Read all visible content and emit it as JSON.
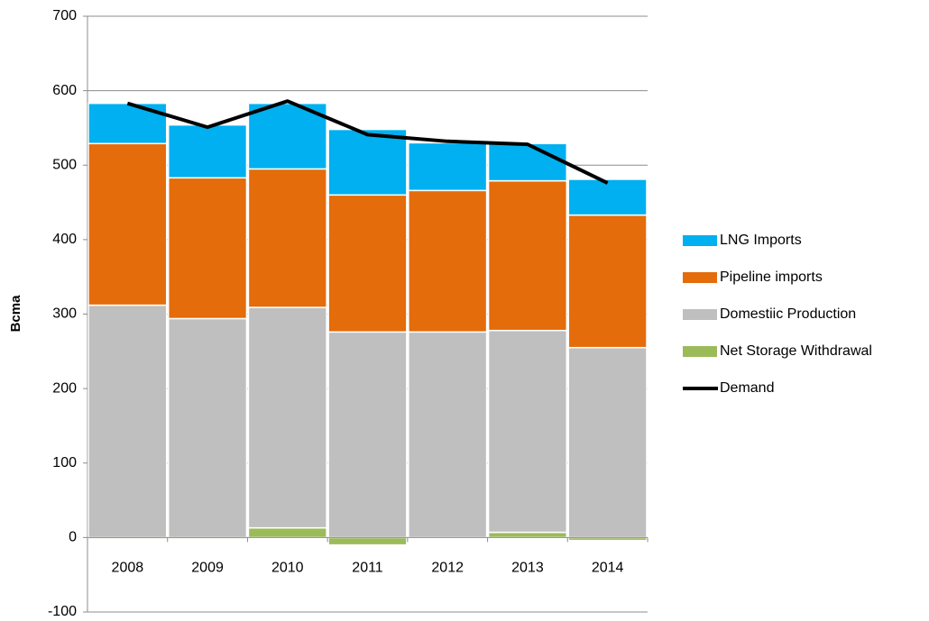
{
  "chart_data": {
    "type": "bar",
    "stacked": true,
    "categories": [
      "2008",
      "2009",
      "2010",
      "2011",
      "2012",
      "2013",
      "2014"
    ],
    "y_label": "Bcma",
    "series": [
      {
        "name": "LNG Imports",
        "color": "#00b0f0",
        "values": [
          54,
          71,
          88,
          88,
          64,
          50,
          48
        ]
      },
      {
        "name": "Pipeline imports",
        "color": "#e46c0a",
        "values": [
          217,
          189,
          186,
          184,
          190,
          201,
          178
        ]
      },
      {
        "name": "Domestiic Production",
        "color": "#bfbfbf",
        "values": [
          312,
          294,
          296,
          276,
          276,
          271,
          255
        ]
      },
      {
        "name": "Net Storage Withdrawal",
        "color": "#9bbb59",
        "values": [
          -2,
          -2,
          13,
          -10,
          0,
          7,
          -4
        ]
      },
      {
        "name": "Demand",
        "color": "#000000",
        "type": "line",
        "values": [
          583,
          551,
          586,
          541,
          532,
          528,
          476
        ]
      }
    ],
    "ylim": [
      -100,
      700
    ],
    "yticks": [
      -100,
      0,
      100,
      200,
      300,
      400,
      500,
      600,
      700
    ],
    "grid": true,
    "legend": "right"
  }
}
